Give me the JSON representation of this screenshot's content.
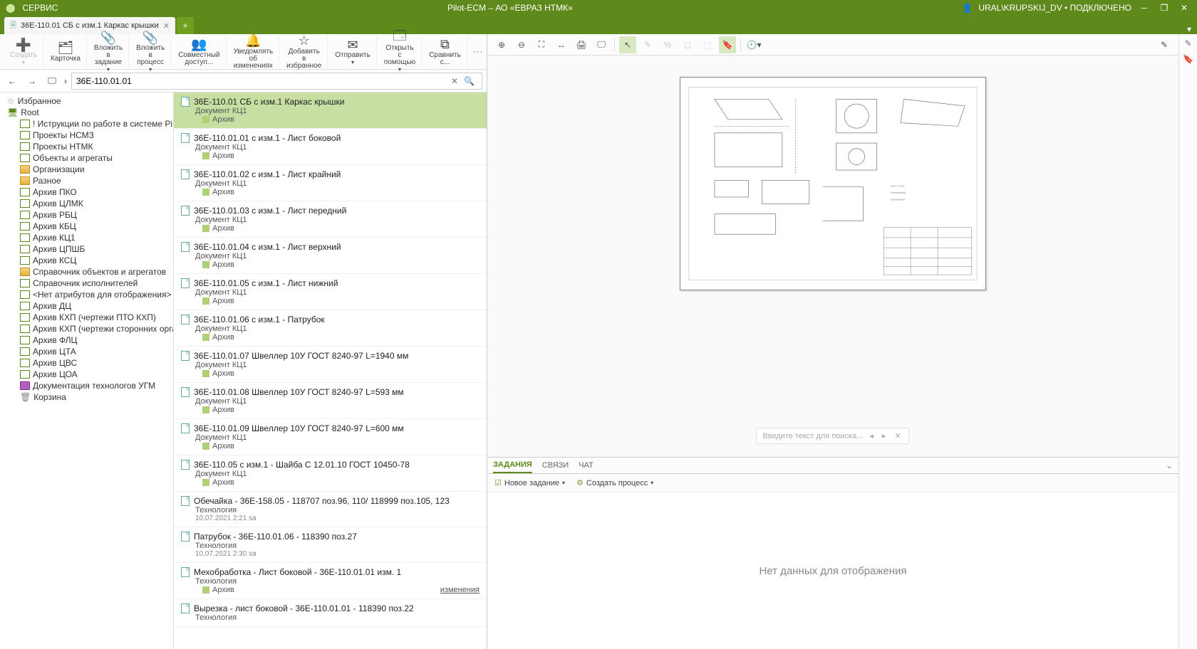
{
  "app": {
    "service_menu": "СЕРВИС",
    "title": "Pilot-ECM – АО «ЕВРАЗ НТМК»",
    "user": "URAL\\KRUPSKIJ_DV",
    "status": "ПОДКЛЮЧЕНО"
  },
  "tab": {
    "label": "36Е-110.01 СБ с изм.1 Каркас крышки"
  },
  "toolbar": {
    "create": "Создать",
    "card": "Карточка",
    "attach_task": "Вложить в\nзадание",
    "attach_process": "Вложить в\nпроцесс",
    "shared": "Совместный\nдоступ...",
    "notify": "Уведомлять об\nизменениях",
    "favorite": "Добавить в\nизбранное",
    "send": "Отправить",
    "open_with": "Открыть с\nпомощью",
    "compare": "Сравнить с..."
  },
  "nav": {
    "path": "36Е-110.01.01"
  },
  "tree": {
    "favorites": "Избранное",
    "root": "Root",
    "items": [
      {
        "label": "! Иструкции по работе в системе Pilot",
        "icon": "green"
      },
      {
        "label": "Проекты НСМЗ",
        "icon": "green"
      },
      {
        "label": "Проекты НТМК",
        "icon": "green"
      },
      {
        "label": "Объекты и агрегаты",
        "icon": "green"
      },
      {
        "label": "Организации",
        "icon": "yellow"
      },
      {
        "label": "Разное",
        "icon": "yellow"
      },
      {
        "label": "Архив ПКО",
        "icon": "green"
      },
      {
        "label": "Архив ЦЛМК",
        "icon": "green"
      },
      {
        "label": "Архив РБЦ",
        "icon": "green"
      },
      {
        "label": "Архив КБЦ",
        "icon": "green"
      },
      {
        "label": "Архив КЦ1",
        "icon": "green"
      },
      {
        "label": "Архив ЦПШБ",
        "icon": "green"
      },
      {
        "label": "Архив КСЦ",
        "icon": "green"
      },
      {
        "label": "Справочник объектов и агрегатов",
        "icon": "yellow"
      },
      {
        "label": "Справочник исполнителей",
        "icon": "green"
      },
      {
        "label": "<Нет атрибутов для отображения>",
        "icon": "green"
      },
      {
        "label": "Архив ДЦ",
        "icon": "green"
      },
      {
        "label": "Архив КХП (чертежи ПТО КХП)",
        "icon": "green"
      },
      {
        "label": "Архив КХП (чертежи сторонних организац...",
        "icon": "green"
      },
      {
        "label": "Архив ФЛЦ",
        "icon": "green"
      },
      {
        "label": "Архив ЦТА",
        "icon": "green"
      },
      {
        "label": "Архив ЦВС",
        "icon": "green"
      },
      {
        "label": "Архив ЦОА",
        "icon": "green"
      },
      {
        "label": "Документация технологов УГМ",
        "icon": "purple"
      },
      {
        "label": "Корзина",
        "icon": "trash"
      }
    ]
  },
  "docs": [
    {
      "title": "36Е-110.01 СБ с изм.1 Каркас крышки",
      "sub": "Документ КЦ1",
      "tag": "Архив",
      "selected": true
    },
    {
      "title": "36Е-110.01.01 с изм.1 - Лист боковой",
      "sub": "Документ КЦ1",
      "tag": "Архив"
    },
    {
      "title": "36Е-110.01.02 с изм.1 - Лист крайний",
      "sub": "Документ КЦ1",
      "tag": "Архив"
    },
    {
      "title": "36Е-110.01.03 с изм.1 - Лист передний",
      "sub": "Документ КЦ1",
      "tag": "Архив"
    },
    {
      "title": "36Е-110.01.04 с изм.1 - Лист верхний",
      "sub": "Документ КЦ1",
      "tag": "Архив"
    },
    {
      "title": "36Е-110.01.05 с изм.1 - Лист нижний",
      "sub": "Документ КЦ1",
      "tag": "Архив"
    },
    {
      "title": "36Е-110.01.06 с изм.1 - Патрубок",
      "sub": "Документ КЦ1",
      "tag": "Архив"
    },
    {
      "title": "36Е-110.01.07 Швеллер 10У ГОСТ 8240-97 L=1940 мм",
      "sub": "Документ КЦ1",
      "tag": "Архив"
    },
    {
      "title": "36Е-110.01.08 Швеллер 10У ГОСТ 8240-97 L=593 мм",
      "sub": "Документ КЦ1",
      "tag": "Архив"
    },
    {
      "title": "36Е-110.01.09 Швеллер 10У ГОСТ 8240-97 L=600 мм",
      "sub": "Документ КЦ1",
      "tag": "Архив"
    },
    {
      "title": "36Е-110.05 с изм.1 - Шайба С 12.01.10 ГОСТ 10450-78",
      "sub": "Документ КЦ1",
      "tag": "Архив"
    },
    {
      "title": "Обечайка - 36Е-158.05 - 118707 поз.96, 110/ 118999 поз.105, 123",
      "sub": "Технология",
      "meta": "10.07.2021 2:21 sa"
    },
    {
      "title": "Патрубок - 36Е-110.01.06 - 118390 поз.27",
      "sub": "Технология",
      "meta": "10.07.2021 2:30 sa"
    },
    {
      "title": "Мехобработка - Лист боковой - 36Е-110.01.01 изм. 1",
      "sub": "Технология",
      "tag": "Архив",
      "changes": "изменения"
    },
    {
      "title": "Вырезка - лист боковой - 36Е-110.01.01 - 118390 поз.22",
      "sub": "Технология"
    }
  ],
  "viewer": {
    "search_placeholder": "Введите текст для поиска..."
  },
  "btabs": {
    "tasks": "ЗАДАНИЯ",
    "links": "СВЯЗИ",
    "chat": "ЧАТ"
  },
  "bactions": {
    "new_task": "Новое задание",
    "create_process": "Создать процесс"
  },
  "bcontent": {
    "empty": "Нет данных для отображения"
  }
}
